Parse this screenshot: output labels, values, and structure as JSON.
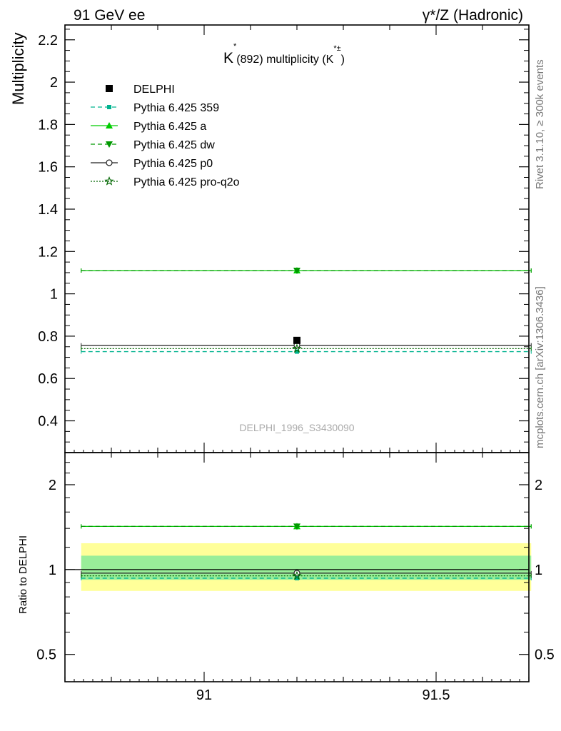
{
  "header": {
    "left": "91 GeV ee",
    "right": "γ*/Z (Hadronic)"
  },
  "side_labels": {
    "rivet": "Rivet 3.1.10, ≥ 300k events",
    "source": "mcplots.cern.ch [arXiv:1306.3436]"
  },
  "chart_data": [
    {
      "type": "scatter",
      "title_main": "K",
      "title_super": "*",
      "title_rest": "(892) multiplicity (K",
      "title_super2": "*±",
      "title_close": ")",
      "ylabel": "Multiplicity",
      "analysis_id": "DELPHI_1996_S3430090",
      "xlim": [
        90.7,
        91.7
      ],
      "ylim": [
        0.25,
        2.27
      ],
      "x_ticks": [
        91,
        91.5
      ],
      "y_ticks": [
        "0.4",
        "0.6",
        "0.8",
        "1",
        "1.2",
        "1.4",
        "1.6",
        "1.8",
        "2",
        "2.2"
      ],
      "legend_position": "top-left",
      "data": {
        "name": "DELPHI",
        "x": 91.2,
        "y": 0.78,
        "color": "#000000"
      },
      "series": [
        {
          "name": "Pythia 6.425 359",
          "y": 0.727,
          "color": "#00b38f",
          "dash": "dashed",
          "marker": "square-small"
        },
        {
          "name": "Pythia 6.425 a",
          "y": 1.11,
          "color": "#00cc00",
          "dash": "solid",
          "marker": "triangle-up"
        },
        {
          "name": "Pythia 6.425 dw",
          "y": 1.11,
          "color": "#009900",
          "dash": "dashed",
          "marker": "triangle-down"
        },
        {
          "name": "Pythia 6.425 p0",
          "y": 0.757,
          "color": "#222222",
          "dash": "solid",
          "marker": "circle-open"
        },
        {
          "name": "Pythia 6.425 pro-q2o",
          "y": 0.741,
          "color": "#006600",
          "dash": "dotted",
          "marker": "star-open"
        }
      ],
      "x_range": [
        90.735,
        91.705
      ]
    },
    {
      "type": "scatter",
      "ylabel": "Ratio to DELPHI",
      "scale": "log",
      "ylim": [
        0.4,
        2.6
      ],
      "y_ticks": [
        "0.5",
        "1",
        "2"
      ],
      "x_ticks": [
        "91",
        "91.5"
      ],
      "band_inner": [
        0.92,
        1.12
      ],
      "band_outer": [
        0.84,
        1.24
      ],
      "band_inner_color": "#99ee99",
      "band_outer_color": "#ffff99",
      "ratios": [
        0.932,
        1.423,
        1.423,
        0.971,
        0.95
      ]
    }
  ]
}
